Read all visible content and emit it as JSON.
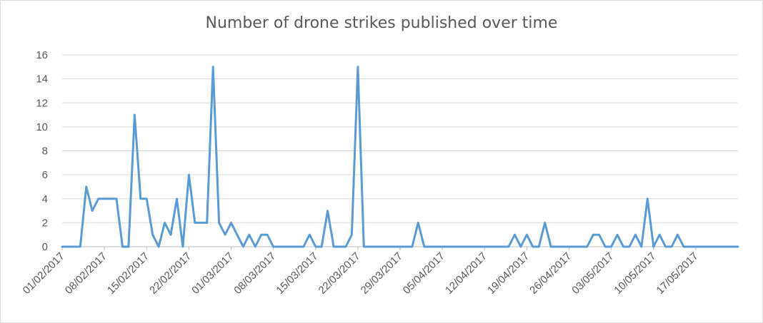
{
  "chart_data": {
    "type": "line",
    "title": "Number of drone strikes published over time",
    "xlabel": "",
    "ylabel": "",
    "ylim": [
      0,
      16
    ],
    "y_ticks": [
      0,
      2,
      4,
      6,
      8,
      10,
      12,
      14,
      16
    ],
    "x_tick_labels": [
      "01/02/2017",
      "08/02/2017",
      "15/02/2017",
      "22/02/2017",
      "01/03/2017",
      "08/03/2017",
      "15/03/2017",
      "22/03/2017",
      "29/03/2017",
      "05/04/2017",
      "12/04/2017",
      "19/04/2017",
      "26/04/2017",
      "03/05/2017",
      "10/05/2017",
      "17/05/2017"
    ],
    "x_start": "01/02/2017",
    "x_end": "24/05/2017",
    "grid": true,
    "legend": "none",
    "line_color": "#5b9bd5",
    "series": [
      {
        "x": [
          "01/02/2017",
          "02/02/2017",
          "03/02/2017",
          "04/02/2017",
          "05/02/2017",
          "06/02/2017",
          "07/02/2017",
          "08/02/2017",
          "09/02/2017",
          "10/02/2017",
          "11/02/2017",
          "12/02/2017",
          "13/02/2017",
          "14/02/2017",
          "15/02/2017",
          "16/02/2017",
          "17/02/2017",
          "18/02/2017",
          "19/02/2017",
          "20/02/2017",
          "21/02/2017",
          "22/02/2017",
          "23/02/2017",
          "24/02/2017",
          "25/02/2017",
          "26/02/2017",
          "27/02/2017",
          "28/02/2017",
          "01/03/2017",
          "02/03/2017",
          "03/03/2017",
          "04/03/2017",
          "05/03/2017",
          "06/03/2017",
          "07/03/2017",
          "08/03/2017",
          "09/03/2017",
          "10/03/2017",
          "11/03/2017",
          "12/03/2017",
          "13/03/2017",
          "14/03/2017",
          "15/03/2017",
          "16/03/2017",
          "17/03/2017",
          "18/03/2017",
          "19/03/2017",
          "20/03/2017",
          "21/03/2017",
          "22/03/2017",
          "23/03/2017",
          "24/03/2017",
          "25/03/2017",
          "26/03/2017",
          "27/03/2017",
          "28/03/2017",
          "29/03/2017",
          "30/03/2017",
          "31/03/2017",
          "01/04/2017",
          "02/04/2017",
          "03/04/2017",
          "04/04/2017",
          "05/04/2017",
          "06/04/2017",
          "07/04/2017",
          "08/04/2017",
          "09/04/2017",
          "10/04/2017",
          "11/04/2017",
          "12/04/2017",
          "13/04/2017",
          "14/04/2017",
          "15/04/2017",
          "16/04/2017",
          "17/04/2017",
          "18/04/2017",
          "19/04/2017",
          "20/04/2017",
          "21/04/2017",
          "22/04/2017",
          "23/04/2017",
          "24/04/2017",
          "25/04/2017",
          "26/04/2017",
          "27/04/2017",
          "28/04/2017",
          "29/04/2017",
          "30/04/2017",
          "01/05/2017",
          "02/05/2017",
          "03/05/2017",
          "04/05/2017",
          "05/05/2017",
          "06/05/2017",
          "07/05/2017",
          "08/05/2017",
          "09/05/2017",
          "10/05/2017",
          "11/05/2017",
          "12/05/2017",
          "13/05/2017",
          "14/05/2017",
          "15/05/2017",
          "16/05/2017",
          "17/05/2017",
          "18/05/2017",
          "19/05/2017",
          "20/05/2017",
          "21/05/2017",
          "22/05/2017",
          "23/05/2017",
          "24/05/2017"
        ],
        "values": [
          0,
          0,
          0,
          0,
          5,
          3,
          4,
          4,
          4,
          4,
          0,
          0,
          11,
          4,
          4,
          1,
          0,
          2,
          1,
          4,
          0,
          6,
          2,
          2,
          2,
          15,
          2,
          1,
          2,
          1,
          0,
          1,
          0,
          1,
          1,
          0,
          0,
          0,
          0,
          0,
          0,
          1,
          0,
          0,
          3,
          0,
          0,
          0,
          1,
          15,
          0,
          0,
          0,
          0,
          0,
          0,
          0,
          0,
          0,
          2,
          0,
          0,
          0,
          0,
          0,
          0,
          0,
          0,
          0,
          0,
          0,
          0,
          0,
          0,
          0,
          1,
          0,
          1,
          0,
          0,
          2,
          0,
          0,
          0,
          0,
          0,
          0,
          0,
          1,
          1,
          0,
          0,
          1,
          0,
          0,
          1,
          0,
          4,
          0,
          1,
          0,
          0,
          1,
          0,
          0,
          0,
          0,
          0,
          0,
          0,
          0,
          0,
          0
        ]
      }
    ]
  }
}
